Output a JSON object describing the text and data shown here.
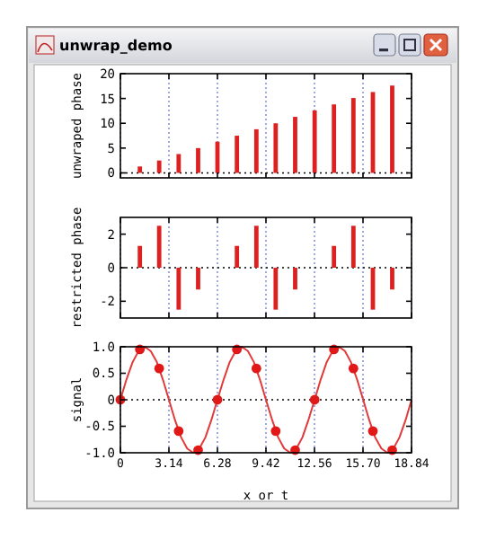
{
  "chart_data": [
    {
      "type": "bar",
      "title": "unwrap_demo",
      "ylabel": "unwraped phase",
      "color": "#dd2020",
      "grid": "x",
      "tick_labels": "y",
      "x": [
        1.26,
        2.51,
        3.77,
        5.03,
        6.28,
        7.54,
        8.8,
        10.05,
        11.31,
        12.57,
        13.82,
        15.08,
        16.34,
        17.59
      ],
      "values": [
        1.3,
        2.5,
        3.8,
        5,
        6.3,
        7.5,
        8.8,
        10,
        11.3,
        12.6,
        13.8,
        15.1,
        16.3,
        17.6
      ],
      "xlim": [
        0,
        18.84
      ],
      "ylim": [
        -1,
        20
      ],
      "xticks": [
        {
          "value": 0,
          "label": null
        },
        {
          "value": 3.14,
          "label": null
        },
        {
          "value": 6.28,
          "label": null
        },
        {
          "value": 9.42,
          "label": null
        },
        {
          "value": 12.56,
          "label": null
        },
        {
          "value": 15.7,
          "label": null
        },
        {
          "value": 18.84,
          "label": null
        }
      ],
      "yticks": [
        0,
        5,
        10,
        15,
        20
      ],
      "ref_lines": [
        {
          "axis": "y",
          "value": 0,
          "line_style": "dotted",
          "color": "#000000"
        }
      ]
    },
    {
      "type": "bar",
      "ylabel": "restricted phase",
      "color": "#dd2020",
      "grid": "x",
      "tick_labels": "y",
      "x": [
        1.26,
        2.51,
        3.77,
        5.03,
        6.28,
        7.54,
        8.8,
        10.05,
        11.31,
        12.57,
        13.82,
        15.08,
        16.34,
        17.59
      ],
      "values": [
        1.3,
        2.5,
        -2.5,
        -1.3,
        0,
        1.3,
        2.5,
        -2.5,
        -1.3,
        0,
        1.3,
        2.5,
        -2.5,
        -1.3
      ],
      "xlim": [
        0,
        18.84
      ],
      "ylim": [
        -3,
        3
      ],
      "xticks": [
        {
          "value": 0,
          "label": null
        },
        {
          "value": 3.14,
          "label": null
        },
        {
          "value": 6.28,
          "label": null
        },
        {
          "value": 9.42,
          "label": null
        },
        {
          "value": 12.56,
          "label": null
        },
        {
          "value": 15.7,
          "label": null
        },
        {
          "value": 18.84,
          "label": null
        }
      ],
      "yticks": [
        -2,
        0,
        2
      ],
      "ref_lines": [
        {
          "axis": "y",
          "value": 0,
          "line_style": "dotted",
          "color": "#000000"
        }
      ]
    },
    {
      "type": "line",
      "xlabel": "x or t",
      "ylabel": "signal",
      "grid": "x",
      "series": [
        {
          "type": "line",
          "color": "#e03a3a",
          "marker": "none",
          "x": [
            0,
            0.39,
            0.79,
            1.18,
            1.57,
            1.96,
            2.36,
            2.75,
            3.14,
            3.53,
            3.93,
            4.32,
            4.71,
            5.11,
            5.5,
            5.89,
            6.28,
            6.68,
            7.07,
            7.46,
            7.85,
            8.25,
            8.64,
            9.03,
            9.42,
            9.82,
            10.21,
            10.6,
            11.0,
            11.39,
            11.78,
            12.17,
            12.57,
            12.96,
            13.35,
            13.74,
            14.14,
            14.53,
            14.92,
            15.32,
            15.71,
            16.1,
            16.49,
            16.89,
            17.28,
            17.67,
            18.06,
            18.46,
            18.84
          ],
          "values": [
            0,
            0.38,
            0.71,
            0.92,
            1,
            0.92,
            0.71,
            0.38,
            0,
            -0.38,
            -0.71,
            -0.92,
            -1,
            -0.92,
            -0.71,
            -0.38,
            0,
            0.38,
            0.71,
            0.92,
            1,
            0.92,
            0.71,
            0.38,
            0,
            -0.38,
            -0.71,
            -0.92,
            -1,
            -0.92,
            -0.71,
            -0.38,
            0,
            0.38,
            0.71,
            0.92,
            1,
            0.92,
            0.71,
            0.38,
            0,
            -0.38,
            -0.71,
            -0.92,
            -1,
            -0.92,
            -0.71,
            -0.38,
            0
          ]
        },
        {
          "type": "scatter",
          "color": "#e01818",
          "marker": "circle",
          "x": [
            0,
            1.26,
            2.51,
            3.77,
            5.03,
            6.28,
            7.54,
            8.8,
            10.05,
            11.31,
            12.57,
            13.82,
            15.08,
            16.34,
            17.59
          ],
          "values": [
            0,
            0.95,
            0.59,
            -0.59,
            -0.95,
            0,
            0.95,
            0.59,
            -0.59,
            -0.95,
            0,
            0.95,
            0.59,
            -0.59,
            -0.95
          ]
        }
      ],
      "xlim": [
        0,
        18.84
      ],
      "ylim": [
        -1,
        1
      ],
      "xticks": [
        0,
        3.14,
        6.28,
        9.42,
        12.56,
        {
          "value": 15.7,
          "label": "15.70"
        },
        18.84
      ],
      "yticks": [
        {
          "value": -1,
          "label": "-1.0"
        },
        {
          "value": -0.5,
          "label": "-0.5"
        },
        0,
        {
          "value": 0.5,
          "label": "0.5"
        },
        {
          "value": 1,
          "label": "1.0"
        }
      ],
      "ref_lines": [
        {
          "axis": "y",
          "value": 0,
          "line_style": "dotted",
          "color": "#000000"
        }
      ]
    }
  ]
}
